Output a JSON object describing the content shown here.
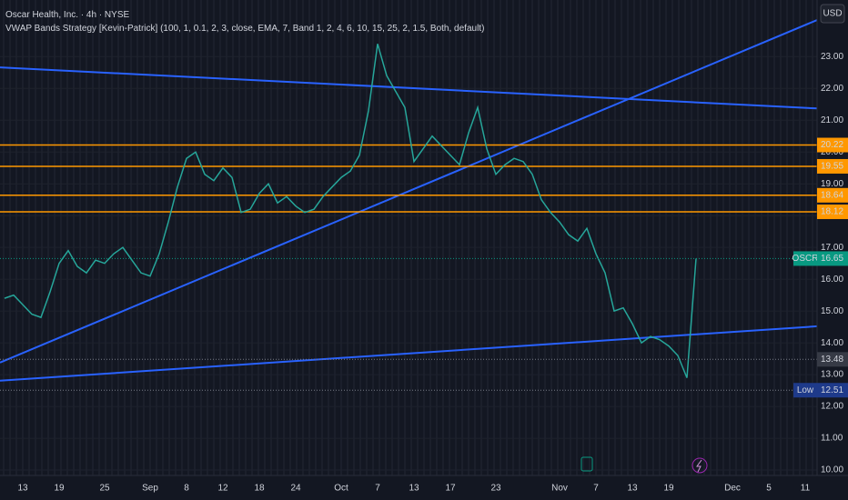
{
  "chart_data": {
    "type": "line",
    "title": "Oscar Health, Inc. · 4h · NYSE",
    "subtitle": "VWAP Bands Strategy [Kevin-Patrick] (100, 1, 0.1, 2, 3, close, EMA, 7, Band 1, 2, 4, 6, 10, 15, 25, 2, 1.5, Both, default)",
    "currency": "USD",
    "color": "#26a69a",
    "categories": [
      null,
      null,
      "13",
      null,
      null,
      null,
      "19",
      null,
      null,
      null,
      null,
      "25",
      null,
      null,
      null,
      null,
      "Sep",
      null,
      null,
      null,
      "8",
      null,
      null,
      null,
      "12",
      null,
      null,
      null,
      "18",
      null,
      null,
      null,
      "24",
      null,
      null,
      null,
      null,
      "Oct",
      null,
      null,
      null,
      "7",
      null,
      null,
      null,
      "13",
      null,
      null,
      null,
      "17",
      null,
      null,
      null,
      null,
      "23",
      null,
      null,
      null,
      null,
      null,
      null,
      "Nov",
      null,
      null,
      null,
      "7",
      null,
      null,
      null,
      "13",
      null,
      null,
      null,
      "19",
      null,
      null,
      null,
      null,
      null,
      null,
      "Dec",
      null,
      null,
      null,
      "5",
      null,
      null,
      null,
      "11",
      null
    ],
    "values": [
      15.4,
      15.5,
      15.2,
      14.9,
      14.8,
      15.6,
      16.5,
      16.9,
      16.4,
      16.2,
      16.6,
      16.5,
      16.8,
      17.0,
      16.6,
      16.2,
      16.1,
      16.8,
      17.8,
      18.9,
      19.8,
      20.0,
      19.3,
      19.1,
      19.5,
      19.2,
      18.1,
      18.2,
      18.7,
      19.0,
      18.4,
      18.6,
      18.3,
      18.1,
      18.2,
      18.6,
      18.9,
      19.2,
      19.4,
      19.9,
      21.3,
      23.4,
      22.4,
      21.9,
      21.4,
      19.7,
      20.1,
      20.5,
      20.2,
      19.9,
      19.6,
      20.6,
      21.4,
      20.1,
      19.3,
      19.6,
      19.8,
      19.7,
      19.3,
      18.5,
      18.1,
      17.8,
      17.4,
      17.2,
      17.6,
      16.8,
      16.2,
      15.0,
      15.1,
      14.6,
      14.0,
      14.2,
      14.1,
      13.9,
      13.6,
      12.9,
      16.65,
      null,
      null,
      null,
      null,
      null,
      null,
      null,
      null,
      null,
      null,
      null,
      null,
      null
    ],
    "ylim": [
      9.83,
      24.78
    ],
    "yticks": [
      {
        "value": 10,
        "label": "10.00"
      },
      {
        "value": 11,
        "label": "11.00"
      },
      {
        "value": 12,
        "label": "12.00"
      },
      {
        "value": 13,
        "label": "13.00"
      },
      {
        "value": 14,
        "label": "14.00"
      },
      {
        "value": 15,
        "label": "15.00"
      },
      {
        "value": 16,
        "label": "16.00"
      },
      {
        "value": 17,
        "label": "17.00"
      },
      {
        "value": 18,
        "label": "18.00"
      },
      {
        "value": 19,
        "label": "19.00"
      },
      {
        "value": 20,
        "label": "20.00"
      },
      {
        "value": 21,
        "label": "21.00"
      },
      {
        "value": 22,
        "label": "22.00"
      },
      {
        "value": 23,
        "label": "23.00"
      }
    ],
    "levels": [
      20.22,
      19.55,
      18.64,
      18.12
    ],
    "level_color": "#ff9800",
    "trendlines": [
      {
        "start": 22.66,
        "end": 21.37
      },
      {
        "start": 13.38,
        "end": 24.15
      },
      {
        "start": 12.81,
        "end": 14.52
      }
    ],
    "trendline_color": "#2962ff",
    "last": {
      "name": "OSCR",
      "value": 16.65,
      "color": "#089981"
    },
    "low": {
      "name": "Low",
      "value": 12.51,
      "color": "#1e3a8a"
    },
    "mark_price": 13.48
  }
}
